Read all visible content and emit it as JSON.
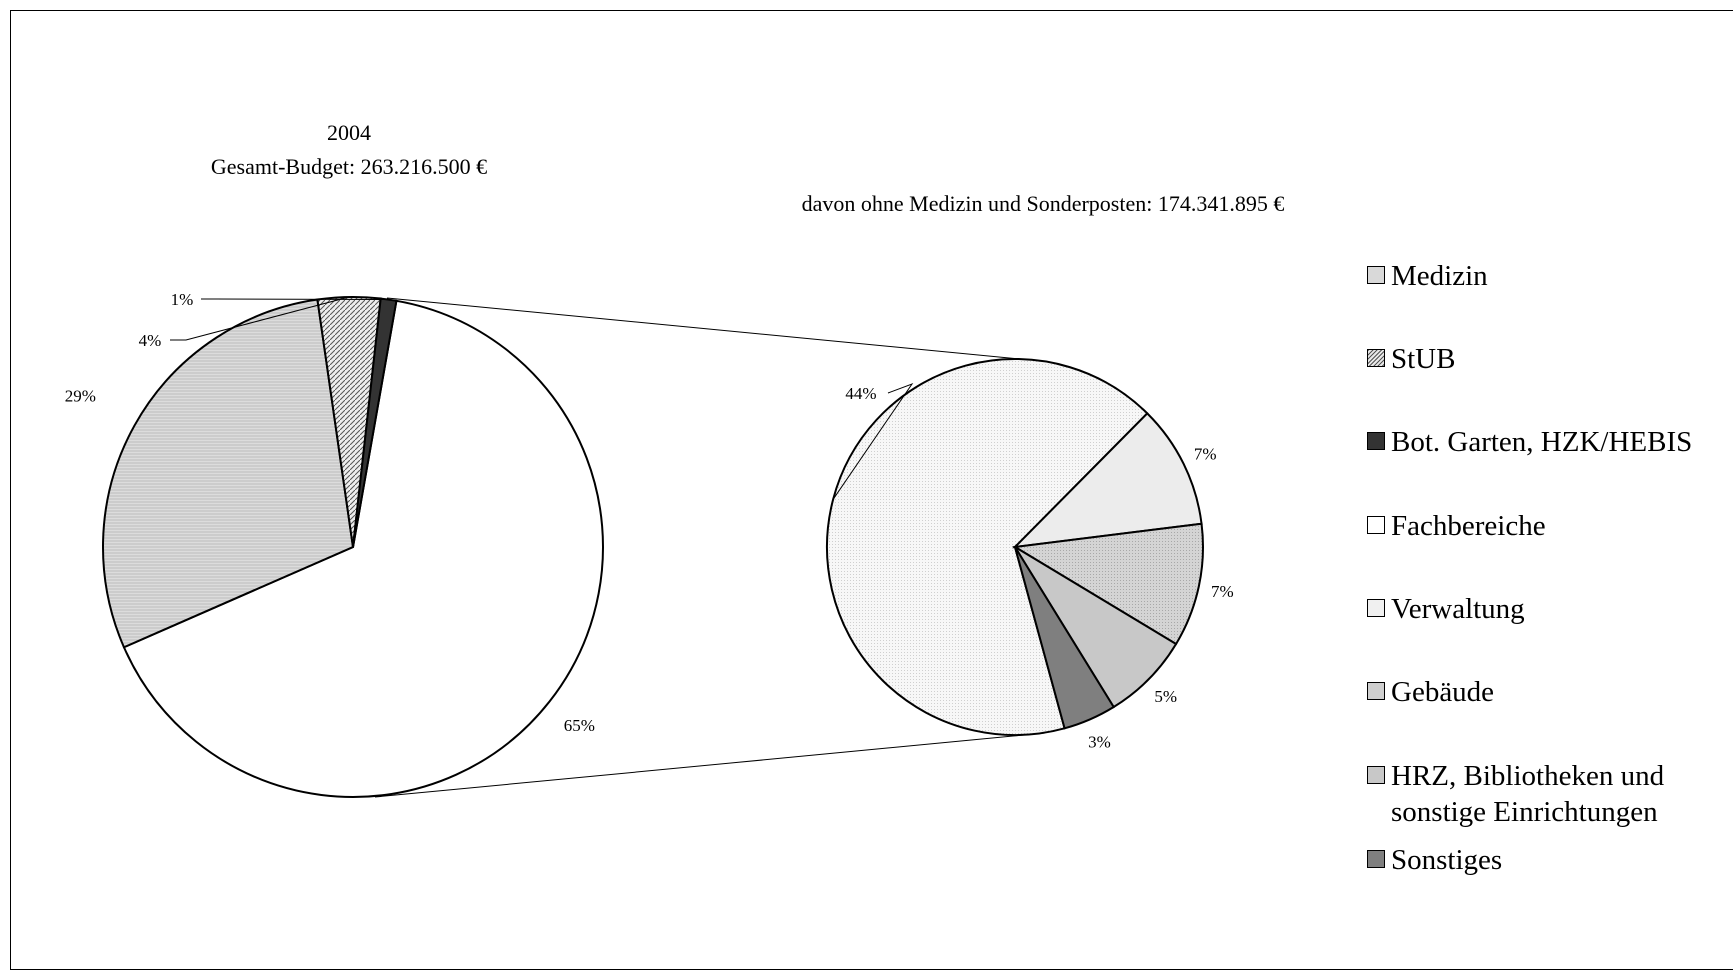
{
  "chart_data": [
    {
      "type": "pie",
      "title": "2004",
      "subtitle": "Gesamt-Budget: 263.216.500 €",
      "slices": [
        {
          "name": "Fachbereiche",
          "value": 65,
          "label": "65%",
          "color": "#ffffff"
        },
        {
          "name": "Medizin",
          "value": 29,
          "label": "29%",
          "color": "#d9d9d9",
          "pattern": "hlines"
        },
        {
          "name": "StUB",
          "value": 4,
          "label": "4%",
          "color": "#e6e6e6",
          "pattern": "diag"
        },
        {
          "name": "Bot. Garten, HZK/HEBIS",
          "value": 1,
          "label": "1%",
          "color": "#333333"
        }
      ]
    },
    {
      "type": "pie",
      "title": "davon ohne Medizin und Sonderposten: 174.341.895 €",
      "slices": [
        {
          "name": "Fachbereiche",
          "value": 44,
          "label": "44%",
          "color": "#f3f3f3",
          "pattern": "dots"
        },
        {
          "name": "Verwaltung",
          "value": 7,
          "label": "7%",
          "color": "#ececec"
        },
        {
          "name": "Gebäude",
          "value": 7,
          "label": "7%",
          "color": "#d6d6d6",
          "pattern": "dots"
        },
        {
          "name": "HRZ, Bibliotheken und sonstige Einrichtungen",
          "value": 5,
          "label": "5%",
          "color": "#c8c8c8"
        },
        {
          "name": "Sonstiges",
          "value": 3,
          "label": "3%",
          "color": "#7f7f7f"
        }
      ]
    }
  ],
  "legend": [
    {
      "label": "Medizin",
      "color": "#d9d9d9"
    },
    {
      "label": "StUB",
      "color": "#d0d0d0",
      "pattern": "diag"
    },
    {
      "label": "Bot. Garten, HZK/HEBIS",
      "color": "#333333"
    },
    {
      "label": "Fachbereiche",
      "color": "#ffffff"
    },
    {
      "label": "Verwaltung",
      "color": "#f0f0f0"
    },
    {
      "label": "Gebäude",
      "color": "#cfcfcf"
    },
    {
      "label": "HRZ, Bibliotheken und\nsonstige Einrichtungen",
      "color": "#c8c8c8"
    },
    {
      "label": "Sonstiges",
      "color": "#7f7f7f"
    }
  ]
}
